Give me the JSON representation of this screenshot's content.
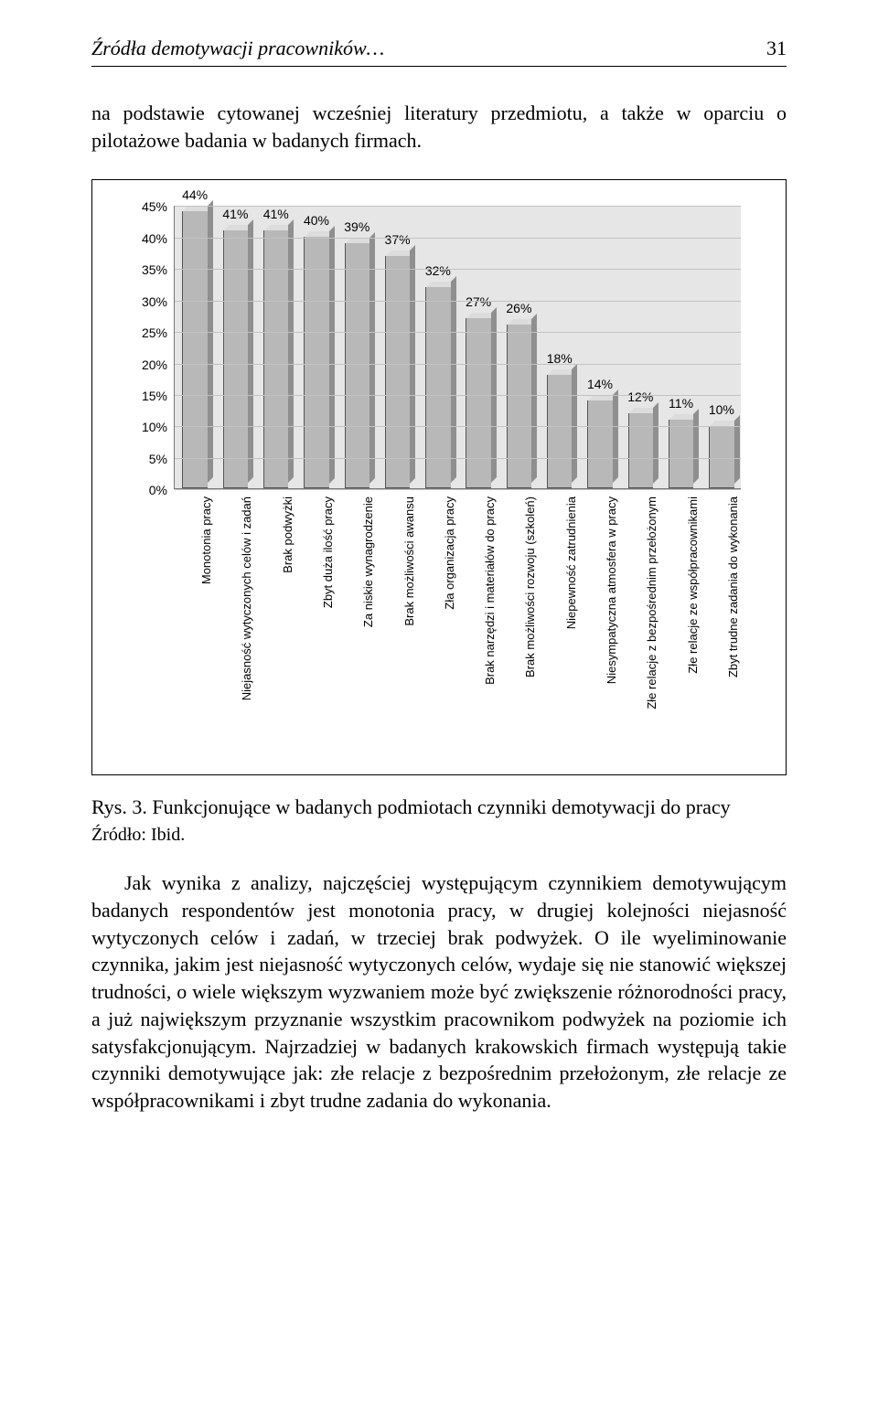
{
  "header": {
    "running_title": "Źródła demotywacji pracowników…",
    "page_number": "31"
  },
  "intro_text": "na podstawie cytowanej wcześniej literatury przedmiotu, a także w oparciu o pilotażowe badania w badanych firmach.",
  "chart": {
    "type": "bar",
    "ymin": 0,
    "ymax": 45,
    "ytick_step": 5,
    "ytick_suffix": "%",
    "background_color": "#e6e6e6",
    "grid_color": "#c2c2c2",
    "bar_front_color": "#b8b8b8",
    "bar_top_color": "#dcdcdc",
    "bar_side_color": "#8f8f8f",
    "label_fontsize": 14,
    "category_fontsize": 13,
    "bars": [
      {
        "label": "44%",
        "value": 44,
        "cat": "Monotonia pracy"
      },
      {
        "label": "41%",
        "value": 41,
        "cat": "Niejasność wytyczonych celów i zadań"
      },
      {
        "label": "41%",
        "value": 41,
        "cat": "Brak podwyżki"
      },
      {
        "label": "40%",
        "value": 40,
        "cat": "Zbyt duża ilość pracy"
      },
      {
        "label": "39%",
        "value": 39,
        "cat": "Za niskie wynagrodzenie"
      },
      {
        "label": "37%",
        "value": 37,
        "cat": "Brak możliwości awansu"
      },
      {
        "label": "32%",
        "value": 32,
        "cat": "Zła organizacja pracy"
      },
      {
        "label": "27%",
        "value": 27,
        "cat": "Brak narzędzi i materiałów do pracy"
      },
      {
        "label": "26%",
        "value": 26,
        "cat": "Brak możliwości rozwoju (szkoleń)"
      },
      {
        "label": "18%",
        "value": 18,
        "cat": "Niepewność zatrudnienia"
      },
      {
        "label": "14%",
        "value": 14,
        "cat": "Niesympatyczna atmosfera w pracy"
      },
      {
        "label": "12%",
        "value": 12,
        "cat": "Złe relacje z bezpośrednim przełożonym"
      },
      {
        "label": "11%",
        "value": 11,
        "cat": "Złe relacje ze współpracownikami"
      },
      {
        "label": "10%",
        "value": 10,
        "cat": "Zbyt trudne zadania do wykonania"
      }
    ]
  },
  "figure": {
    "caption_label": "Rys. 3.",
    "caption_text": "Funkcjonujące w badanych podmiotach czynniki demotywacji do pracy",
    "source": "Źródło: Ibid."
  },
  "body": "Jak wynika z analizy, najczęściej występującym czynnikiem demotywującym badanych respondentów jest monotonia pracy, w drugiej kolejności niejasność wytyczonych celów i zadań, w trzeciej brak podwyżek. O ile wyeliminowanie czynnika, jakim jest niejasność wytyczonych celów, wydaje się nie stanowić większej trudności, o wiele większym wyzwaniem może być zwiększenie różnorodności pracy, a już największym przyznanie wszystkim pracownikom podwyżek na poziomie ich satysfakcjonującym. Najrzadziej w badanych krakowskich firmach występują takie czynniki demotywujące jak: złe relacje z bezpośrednim przełożonym, złe relacje ze współpracownikami i zbyt trudne zadania do wykonania."
}
